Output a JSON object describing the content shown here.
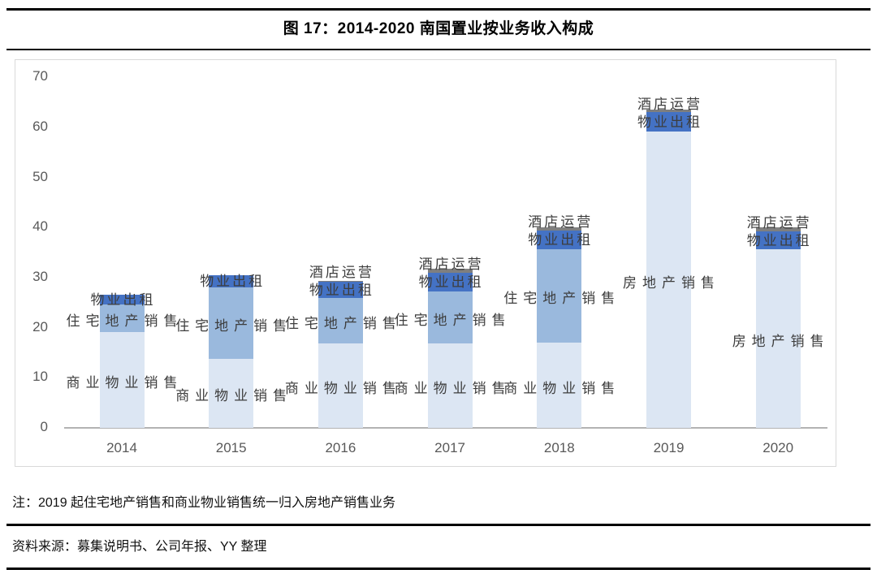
{
  "title": "图 17：2014-2020 南国置业按业务收入构成",
  "note": "注：2019 起住宅地产销售和商业物业销售统一归入房地产销售业务",
  "source": "资料来源：募集说明书、公司年报、YY 整理",
  "chart_data": {
    "type": "bar",
    "stacked": true,
    "title": "图 17：2014-2020 南国置业按业务收入构成",
    "xlabel": "",
    "ylabel": "",
    "ylim": [
      0,
      70
    ],
    "yticks": [
      0,
      10,
      20,
      30,
      40,
      50,
      60,
      70
    ],
    "grid": false,
    "legend": false,
    "labels_inline": true,
    "categories": [
      "2014",
      "2015",
      "2016",
      "2017",
      "2018",
      "2019",
      "2020"
    ],
    "series": [
      {
        "name": "商业物业销售",
        "key": "commercial-property-sales",
        "color": "#dce6f3",
        "label_style": "center",
        "values": [
          19.2,
          13.8,
          16.9,
          16.9,
          17.0,
          0,
          0
        ]
      },
      {
        "name": "住宅地产销售",
        "key": "residential-property-sales",
        "color": "#9ab9dd",
        "label_style": "center",
        "values": [
          5.4,
          14.3,
          9.0,
          10.4,
          18.7,
          0,
          0
        ]
      },
      {
        "name": "房地产销售",
        "key": "real-estate-sales",
        "color": "#dce6f3",
        "label_style": "center",
        "values": [
          0,
          0,
          0,
          0,
          0,
          59.1,
          35.7
        ]
      },
      {
        "name": "物业出租",
        "key": "property-leasing",
        "color": "#4472c4",
        "label_style": "rental",
        "values": [
          1.9,
          2.4,
          3.2,
          3.7,
          3.7,
          3.9,
          3.5
        ]
      },
      {
        "name": "酒店运营",
        "key": "hotel-operation",
        "color": "#7f7f7f",
        "label_style": "hotel",
        "values": [
          0,
          0,
          0.2,
          0.8,
          0.6,
          0.6,
          0.8
        ]
      }
    ]
  }
}
